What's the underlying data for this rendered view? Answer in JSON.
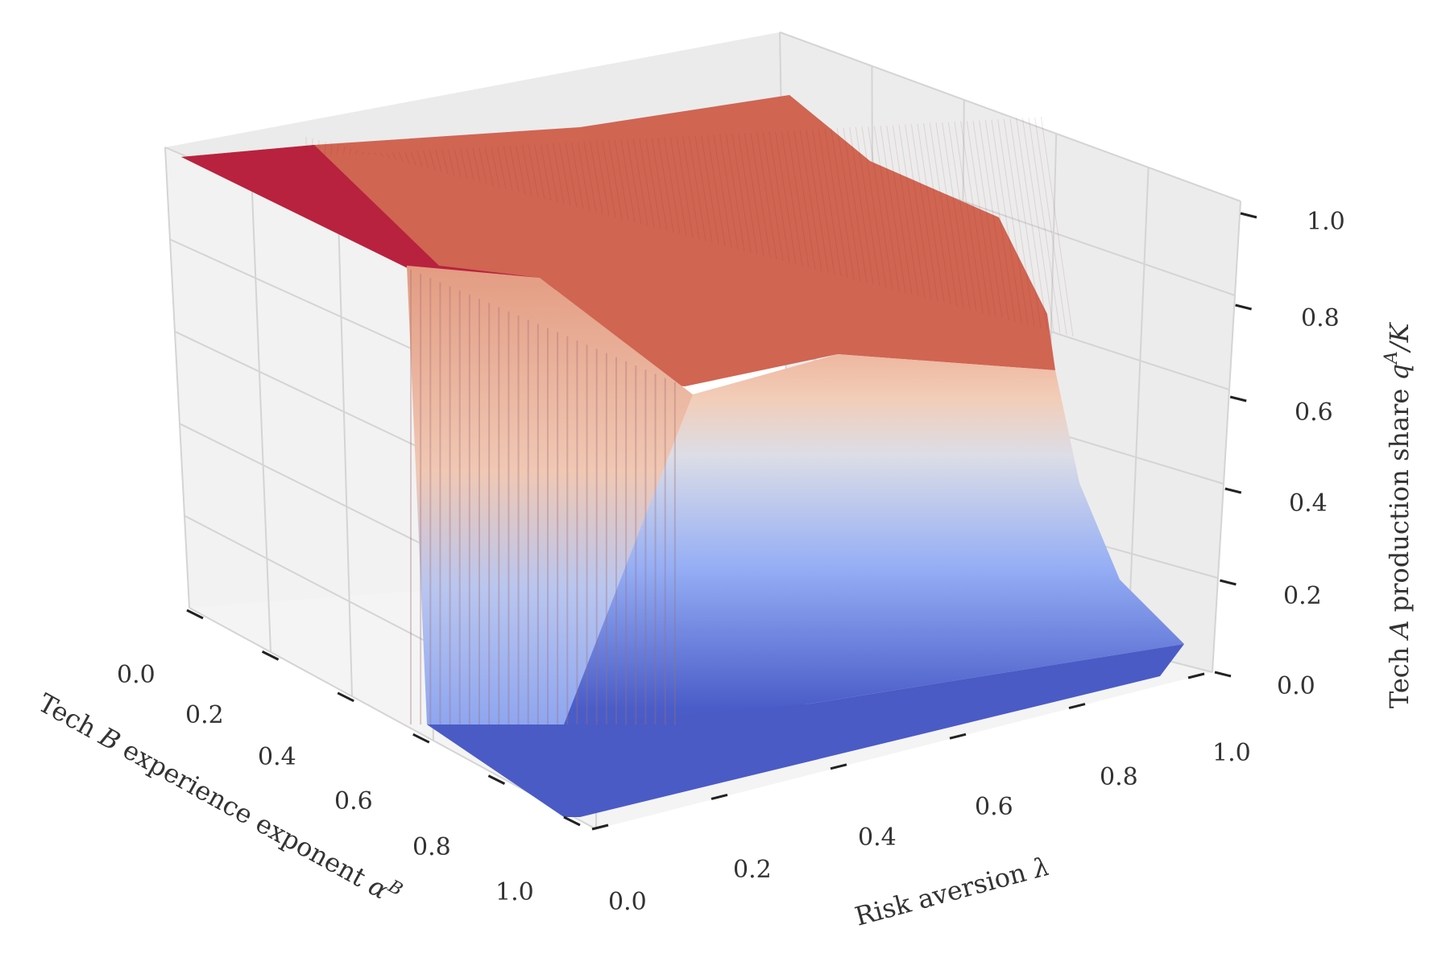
{
  "chart_data": {
    "type": "surface3d",
    "title": "",
    "colormap": "coolwarm",
    "grid": true,
    "x_axis": {
      "label_text": "Risk aversion ",
      "label_symbol": "λ",
      "range": [
        0.0,
        1.0
      ],
      "ticks": [
        "0.0",
        "0.2",
        "0.4",
        "0.6",
        "0.8",
        "1.0"
      ]
    },
    "y_axis": {
      "label_text": "Tech ",
      "label_symbol1": "B",
      "label_text2": " experience exponent ",
      "label_symbol2": "α",
      "label_sup": "B",
      "range": [
        0.0,
        1.0
      ],
      "ticks": [
        "0.0",
        "0.2",
        "0.4",
        "0.6",
        "0.8",
        "1.0"
      ]
    },
    "z_axis": {
      "label_text": "Tech ",
      "label_symbol1": "A",
      "label_text2": " production share ",
      "label_symbol2": "q",
      "label_sup": "A",
      "label_tail": "/K",
      "range": [
        0.0,
        1.0
      ],
      "ticks": [
        "0.0",
        "0.2",
        "0.4",
        "0.6",
        "0.8",
        "1.0"
      ]
    },
    "surface_samples": {
      "risk_aversion": [
        0.0,
        0.2,
        0.4,
        0.6,
        0.8,
        1.0
      ],
      "experience_exponent": [
        0.0,
        0.2,
        0.4,
        0.6,
        0.8,
        1.0
      ],
      "production_share": [
        [
          1.0,
          0.98,
          0.98,
          0.98,
          0.98,
          0.98
        ],
        [
          1.0,
          0.95,
          0.93,
          0.92,
          0.9,
          0.88
        ],
        [
          1.0,
          0.75,
          0.55,
          0.45,
          0.35,
          0.2
        ],
        [
          1.0,
          0.3,
          0.18,
          0.12,
          0.08,
          0.04
        ],
        [
          0.0,
          0.05,
          0.03,
          0.02,
          0.02,
          0.01
        ],
        [
          0.0,
          0.01,
          0.0,
          0.0,
          0.0,
          0.0
        ]
      ]
    }
  }
}
